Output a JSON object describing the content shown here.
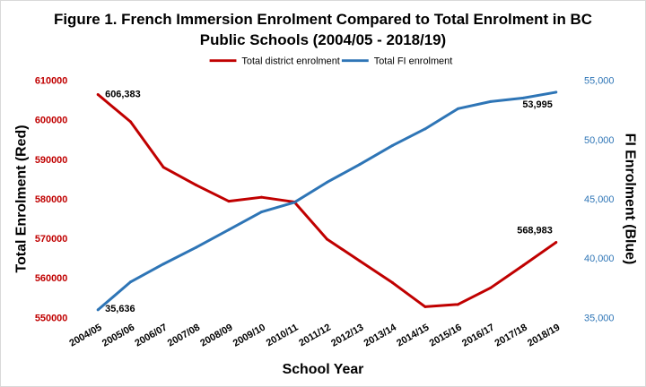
{
  "chart_data": {
    "type": "line",
    "title_line1": "Figure 1. French Immersion Enrolment Compared to Total Enrolment in BC",
    "title_line2": "Public Schools (2004/05 - 2018/19)",
    "xlabel": "School Year",
    "ylabel_left": "Total Enrolment (Red)",
    "ylabel_right": "FI Enrolment (Blue)",
    "categories": [
      "2004/05",
      "2005/06",
      "2006/07",
      "2007/08",
      "2008/09",
      "2009/10",
      "2010/11",
      "2011/12",
      "2012/13",
      "2013/14",
      "2014/15",
      "2015/16",
      "2016/17",
      "2017/18",
      "2018/19"
    ],
    "ylim_left": [
      550000,
      610000
    ],
    "ylim_right": [
      35000,
      55000
    ],
    "left_ticks": [
      "610000",
      "600000",
      "590000",
      "580000",
      "570000",
      "560000",
      "550000"
    ],
    "right_ticks": [
      "55,000",
      "50,000",
      "45,000",
      "40,000",
      "35,000"
    ],
    "series": [
      {
        "name": "Total district enrolment",
        "axis": "left",
        "color": "#c00000",
        "values": [
          606383,
          599500,
          588000,
          583500,
          579400,
          580400,
          579200,
          569800,
          564300,
          558800,
          552700,
          553300,
          557500,
          563200,
          568983
        ]
      },
      {
        "name": "Total FI enrolment",
        "axis": "right",
        "color": "#2e75b6",
        "values": [
          35636,
          38000,
          39500,
          40900,
          42400,
          43900,
          44700,
          46400,
          47900,
          49500,
          50900,
          52600,
          53200,
          53500,
          53995
        ]
      }
    ],
    "data_labels": {
      "red_first": "606,383",
      "red_last": "568,983",
      "blue_first": "35,636",
      "blue_last": "53,995"
    },
    "grid": false,
    "legend_position": "top"
  }
}
